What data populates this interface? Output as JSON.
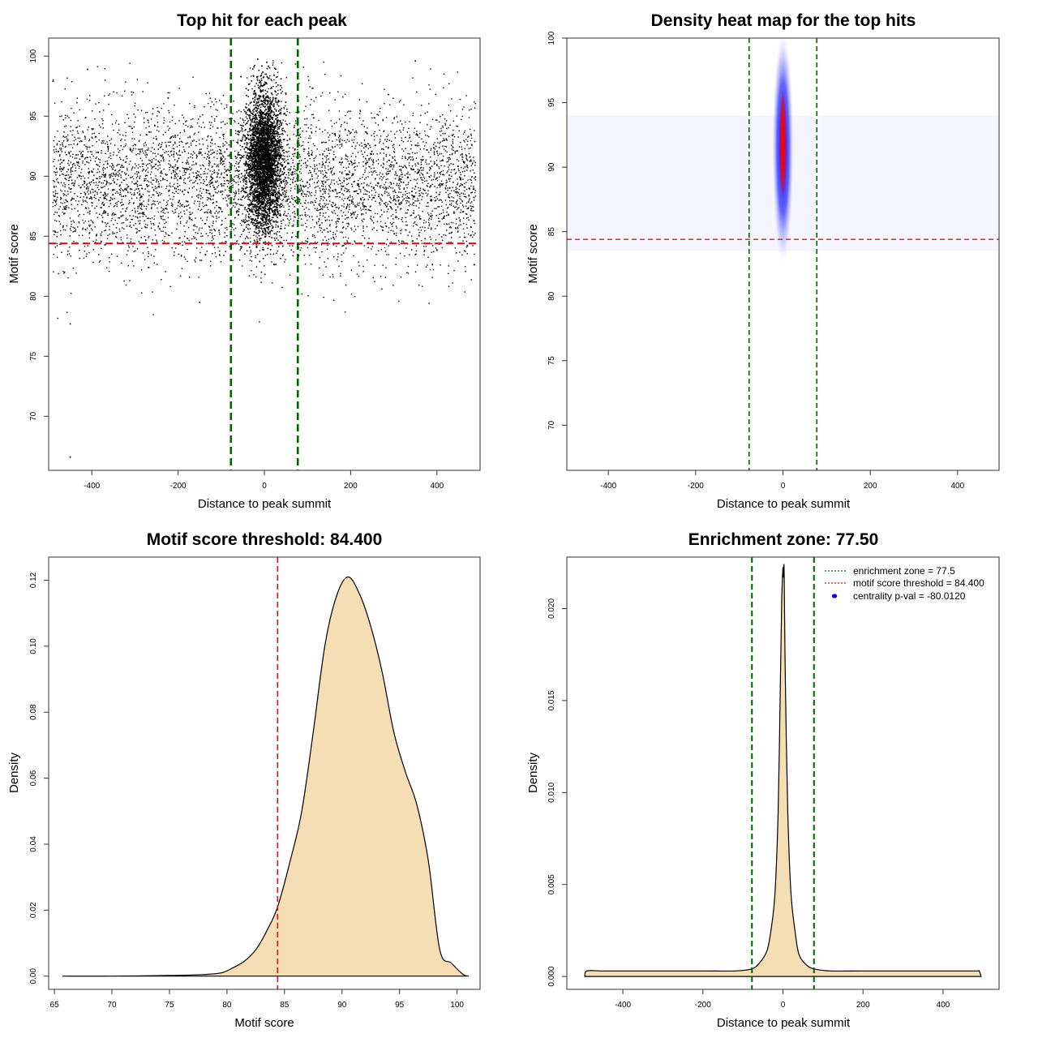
{
  "colors": {
    "green": "#006400",
    "red": "#dd1111",
    "fill": "#f5deb3",
    "heat_low": "#f4f4ff",
    "heat_mid": "#0000ff",
    "heat_high": "#ff0000",
    "points": "#000000"
  },
  "chart_data": [
    {
      "type": "scatter",
      "title": "Top hit for each peak",
      "xlabel": "Distance to peak summit",
      "ylabel": "Motif score",
      "xlim": [
        -500,
        500
      ],
      "ylim": [
        65.5,
        101.5
      ],
      "xticks": [
        -400,
        -200,
        0,
        200,
        400
      ],
      "yticks": [
        70,
        75,
        80,
        85,
        90,
        95,
        100
      ],
      "x_tick_labels": [
        "-400",
        "-200",
        "0",
        "200",
        "400"
      ],
      "y_tick_labels": [
        "70",
        "75",
        "80",
        "85",
        "90",
        "95",
        "100"
      ],
      "vlines": [
        -77.5,
        77.5
      ],
      "hline": 84.4,
      "distribution": {
        "background": {
          "x_range": [
            -490,
            490
          ],
          "y_mean": 89.3,
          "y_sd": 3.2
        },
        "center": {
          "x_mean": 0,
          "x_sd": 20,
          "y_mean": 91.3,
          "y_sd": 2.8
        },
        "outliers": [
          [
            -450,
            66.6
          ],
          [
            -450,
            77.7
          ],
          [
            -410,
            98.9
          ],
          [
            -490,
            97.9
          ],
          [
            350,
            99.6
          ],
          [
            -150,
            79.5
          ]
        ]
      },
      "grid": false
    },
    {
      "type": "heatmap",
      "title": "Density heat map for the top hits",
      "xlabel": "Distance to peak summit",
      "ylabel": "Motif score",
      "xlim": [
        -495,
        495
      ],
      "ylim": [
        66.5,
        100
      ],
      "xticks": [
        -400,
        -200,
        0,
        200,
        400
      ],
      "yticks": [
        70,
        75,
        80,
        85,
        90,
        95,
        100
      ],
      "x_tick_labels": [
        "-400",
        "-200",
        "0",
        "200",
        "400"
      ],
      "y_tick_labels": [
        "70",
        "75",
        "80",
        "85",
        "90",
        "95",
        "100"
      ],
      "vlines": [
        -77.5,
        77.5
      ],
      "hline": 84.4,
      "hotspot": {
        "x": 0,
        "y": 91.8,
        "x_sd": 5,
        "y_sd": 2.2
      },
      "halo": {
        "x": 0,
        "y": 91.5,
        "x_sd": 7,
        "y_sd": 4.2
      },
      "grid": false
    },
    {
      "type": "area",
      "title": "Motif score threshold: 84.400",
      "xlabel": "Motif score",
      "ylabel": "Density",
      "xlim": [
        64.5,
        102
      ],
      "ylim": [
        -0.004,
        0.127
      ],
      "xticks": [
        65,
        70,
        75,
        80,
        85,
        90,
        95,
        100
      ],
      "yticks": [
        0.0,
        0.02,
        0.04,
        0.06,
        0.08,
        0.1,
        0.12
      ],
      "x_tick_labels": [
        "65",
        "70",
        "75",
        "80",
        "85",
        "90",
        "95",
        "100"
      ],
      "y_tick_labels": [
        "0.00",
        "0.02",
        "0.04",
        "0.06",
        "0.08",
        "0.10",
        "0.12"
      ],
      "x": [
        65.7,
        70,
        75,
        78,
        79.5,
        80.5,
        81.5,
        82.5,
        83.5,
        84.4,
        85.5,
        86.5,
        87.5,
        88.5,
        89.5,
        90.5,
        91.5,
        92.5,
        93.5,
        94.5,
        95.5,
        96.5,
        97.5,
        98.5,
        99.5,
        100.5,
        101
      ],
      "y": [
        0.0,
        0.0,
        0.0002,
        0.0005,
        0.001,
        0.0025,
        0.0045,
        0.008,
        0.014,
        0.021,
        0.035,
        0.05,
        0.074,
        0.1,
        0.115,
        0.121,
        0.116,
        0.106,
        0.092,
        0.074,
        0.062,
        0.052,
        0.035,
        0.008,
        0.004,
        0.0006,
        0.0
      ]
    },
    {
      "type": "area",
      "title": "Enrichment zone: 77.50",
      "xlabel": "Distance to peak summit",
      "ylabel": "Density",
      "xlim": [
        -540,
        540
      ],
      "ylim": [
        -0.0007,
        0.0228
      ],
      "xticks": [
        -400,
        -200,
        0,
        200,
        400
      ],
      "yticks": [
        0.0,
        0.005,
        0.01,
        0.015,
        0.02
      ],
      "x_tick_labels": [
        "-400",
        "-200",
        "0",
        "200",
        "400"
      ],
      "y_tick_labels": [
        "0.000",
        "0.005",
        "0.010",
        "0.015",
        "0.020"
      ],
      "x": [
        -495,
        -490,
        -450,
        -400,
        -300,
        -200,
        -120,
        -80,
        -60,
        -40,
        -30,
        -20,
        -12,
        -6,
        -3,
        0,
        1,
        2,
        3,
        6,
        12,
        20,
        30,
        40,
        60,
        80,
        120,
        200,
        300,
        400,
        480,
        490,
        495
      ],
      "y": [
        0.0,
        0.0003,
        0.0003,
        0.0003,
        0.0003,
        0.0003,
        0.0003,
        0.0004,
        0.0007,
        0.0014,
        0.0025,
        0.0045,
        0.009,
        0.0165,
        0.0205,
        0.0222,
        0.0217,
        0.0222,
        0.0218,
        0.016,
        0.009,
        0.0045,
        0.0025,
        0.0012,
        0.0006,
        0.0004,
        0.0003,
        0.0003,
        0.0003,
        0.0003,
        0.0003,
        0.0003,
        0.0
      ],
      "vlines": [
        -77.5,
        77.5
      ],
      "legend": {
        "position": "top-right",
        "entries": [
          {
            "label": "enrichment zone = 77.5",
            "style": "dotted-line",
            "color": "#006400"
          },
          {
            "label": "motif score threshold = 84.400",
            "style": "dotted-line",
            "color": "#dd1111"
          },
          {
            "label": "centrality p-val = -80.0120",
            "style": "point",
            "color": "#0000ff"
          }
        ]
      }
    }
  ]
}
